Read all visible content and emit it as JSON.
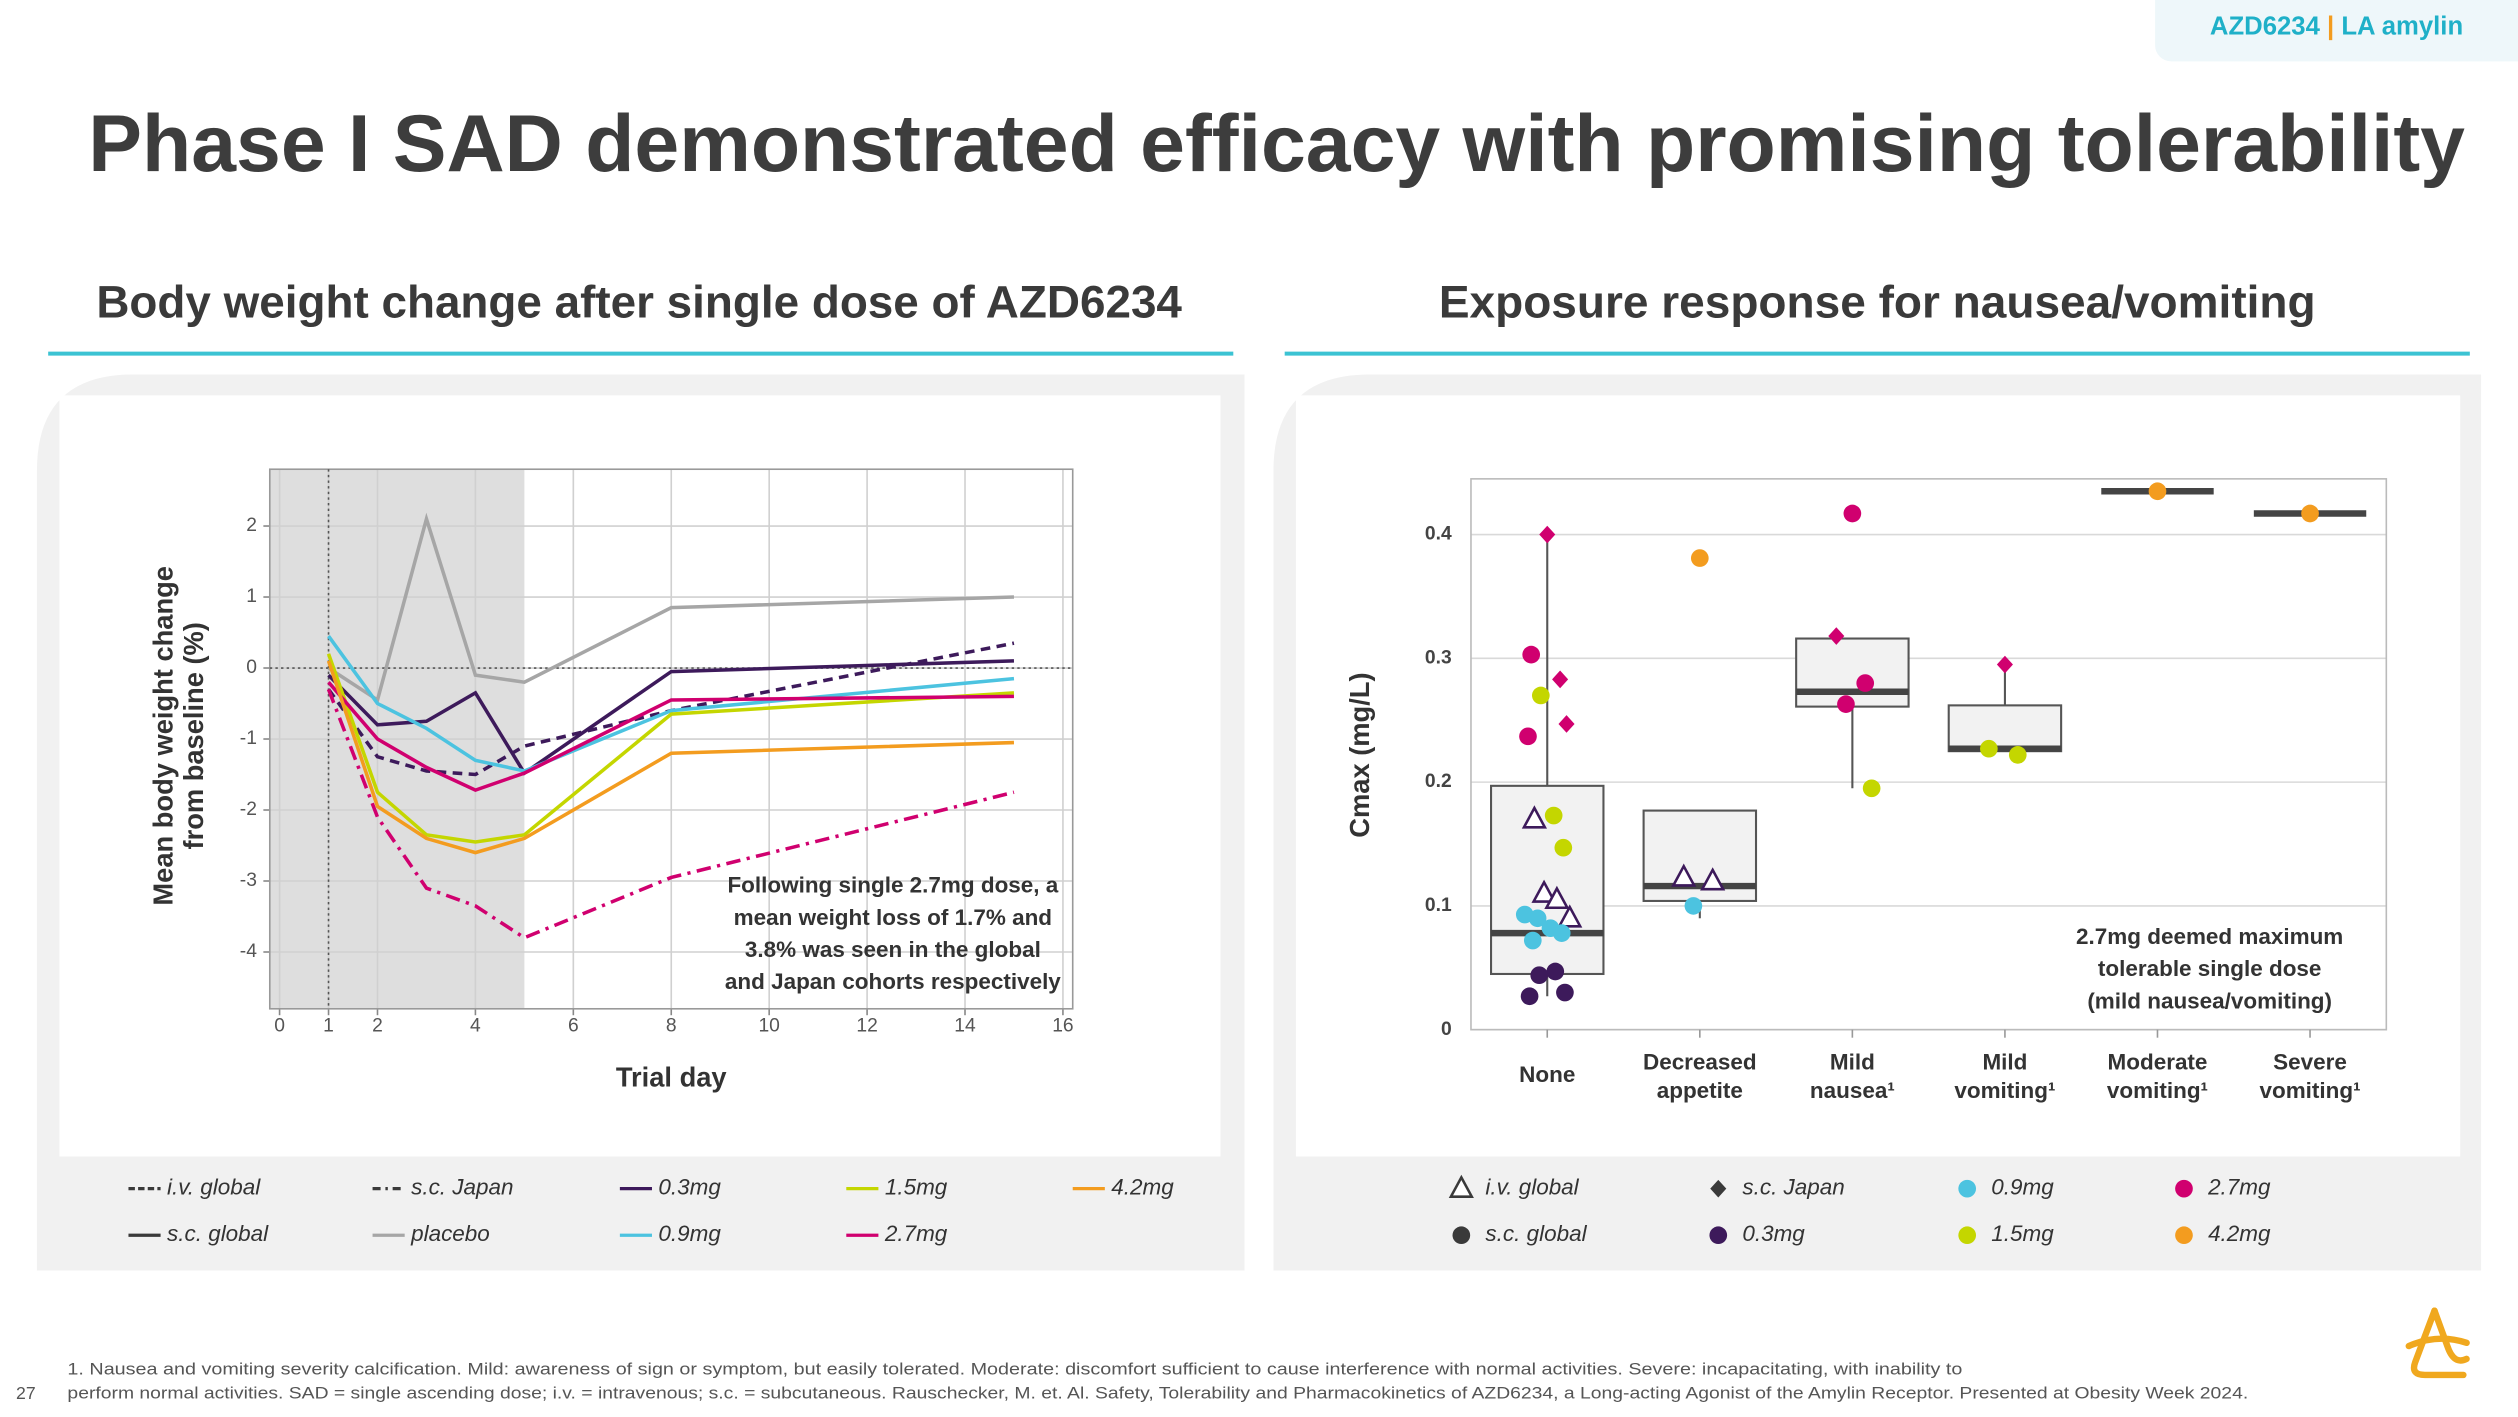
{
  "slide": {
    "badge": {
      "product": "AZD6234",
      "separator": "|",
      "tag": "LA amylin"
    },
    "title": "Phase I SAD demonstrated efficacy with promising tolerability",
    "footnotes": [
      "1. Nausea and vomiting severity calcification. Mild: awareness of sign or symptom, but easily tolerated. Moderate: discomfort sufficient to cause interference with normal activities. Severe: incapacitating, with inability to",
      "perform normal activities. SAD = single ascending dose; i.v. = intravenous; s.c. = subcutaneous. Rauschecker, M. et. Al. Safety, Tolerability and Pharmacokinetics of AZD6234, a Long-acting Agonist of the Amylin Receptor. Presented at Obesity Week 2024."
    ],
    "page_number": "27"
  },
  "chart_data": [
    {
      "type": "line",
      "title": "Body weight change after single dose of AZD6234",
      "x_label": "Trial day",
      "y_label": [
        "Mean body weight change",
        "from baseline (%)"
      ],
      "x": [
        1,
        2,
        3,
        4,
        5,
        8,
        15
      ],
      "xlim": [
        -0.2,
        16.2
      ],
      "xticks": [
        0,
        1,
        2,
        4,
        6,
        8,
        10,
        12,
        14,
        16
      ],
      "ylim": [
        -4.8,
        2.8
      ],
      "yticks": [
        -4,
        -3,
        -2,
        -1,
        0,
        1,
        2
      ],
      "grid": true,
      "shaded_until_x": 5,
      "ref_x": 1,
      "ref_y": 0,
      "series": [
        {
          "name": "placebo",
          "route": "s.c. global",
          "values": [
            0,
            -0.45,
            2.1,
            -0.1,
            -0.2,
            0.85,
            1.0
          ]
        },
        {
          "name": "0.3mg",
          "route": "s.c. global",
          "values": [
            -0.1,
            -0.8,
            -0.75,
            -0.35,
            -1.48,
            -0.05,
            0.1
          ]
        },
        {
          "name": "0.3mg",
          "route": "i.v. global",
          "values": [
            -0.3,
            -1.25,
            -1.45,
            -1.5,
            -1.1,
            -0.6,
            0.35
          ]
        },
        {
          "name": "0.9mg",
          "route": "s.c. global",
          "values": [
            0.45,
            -0.5,
            -0.85,
            -1.3,
            -1.45,
            -0.6,
            -0.15
          ]
        },
        {
          "name": "1.5mg",
          "route": "s.c. global",
          "values": [
            0.2,
            -1.75,
            -2.35,
            -2.45,
            -2.35,
            -0.65,
            -0.35
          ]
        },
        {
          "name": "2.7mg",
          "route": "s.c. global",
          "values": [
            -0.2,
            -1.0,
            -1.4,
            -1.72,
            -1.48,
            -0.45,
            -0.4
          ]
        },
        {
          "name": "2.7mg",
          "route": "s.c. Japan",
          "values": [
            -0.3,
            -2.1,
            -3.1,
            -3.35,
            -3.8,
            -2.95,
            -1.75
          ]
        },
        {
          "name": "4.2mg",
          "route": "s.c. global",
          "values": [
            0.1,
            -1.95,
            -2.4,
            -2.6,
            -2.4,
            -1.2,
            -1.05
          ]
        }
      ],
      "legend": [
        {
          "label": "i.v. global",
          "color": "#3a3a3a",
          "dash": "dashed"
        },
        {
          "label": "s.c. Japan",
          "color": "#3a3a3a",
          "dash": "dashdot"
        },
        {
          "label": "0.3mg",
          "color": "#3d1a5b"
        },
        {
          "label": "1.5mg",
          "color": "#c4d600"
        },
        {
          "label": "4.2mg",
          "color": "#f39c1f"
        },
        {
          "label": "s.c. global",
          "color": "#3a3a3a",
          "dash": "solid"
        },
        {
          "label": "placebo",
          "color": "#a6a6a6"
        },
        {
          "label": "0.9mg",
          "color": "#4cc3e0"
        },
        {
          "label": "2.7mg",
          "color": "#d0006f"
        }
      ],
      "annotation": [
        "Following single 2.7mg dose, a",
        "mean weight loss of 1.7% and",
        "3.8% was seen in the global",
        "and Japan cohorts respectively"
      ]
    },
    {
      "type": "box",
      "title": "Exposure response for nausea/vomiting",
      "y_label": "Cmax (mg/L)",
      "categories": [
        [
          "None"
        ],
        [
          "Decreased",
          "appetite"
        ],
        [
          "Mild",
          "nausea¹"
        ],
        [
          "Mild",
          "vomiting¹"
        ],
        [
          "Moderate",
          "vomiting¹"
        ],
        [
          "Severe",
          "vomiting¹"
        ]
      ],
      "ylim": [
        0,
        0.445
      ],
      "yticks": [
        0,
        0.1,
        0.2,
        0.3,
        0.4
      ],
      "grid": true,
      "boxes": [
        {
          "min": 0.027,
          "q1": 0.045,
          "median": 0.078,
          "q3": 0.197,
          "max": 0.4
        },
        {
          "min": 0.09,
          "q1": 0.104,
          "median": 0.116,
          "q3": 0.177,
          "max": 0.177
        },
        {
          "min": 0.195,
          "q1": 0.261,
          "median": 0.273,
          "q3": 0.316,
          "max": 0.316
        },
        {
          "min": 0.225,
          "q1": 0.225,
          "median": 0.227,
          "q3": 0.262,
          "max": 0.293
        },
        {
          "min": 0.435,
          "q1": 0.435,
          "median": 0.435,
          "q3": 0.435,
          "max": 0.435
        },
        {
          "min": 0.417,
          "q1": 0.417,
          "median": 0.417,
          "q3": 0.417,
          "max": 0.417
        }
      ],
      "points": [
        [
          {
            "y": 0.4,
            "dose": "2.7mg",
            "route": "s.c. Japan"
          },
          {
            "y": 0.303,
            "dose": "2.7mg",
            "route": "s.c. global"
          },
          {
            "y": 0.283,
            "dose": "2.7mg",
            "route": "s.c. Japan"
          },
          {
            "y": 0.27,
            "dose": "1.5mg",
            "route": "s.c. global"
          },
          {
            "y": 0.247,
            "dose": "2.7mg",
            "route": "s.c. Japan"
          },
          {
            "y": 0.237,
            "dose": "2.7mg",
            "route": "s.c. global"
          },
          {
            "y": 0.173,
            "dose": "1.5mg",
            "route": "s.c. global"
          },
          {
            "y": 0.17,
            "dose": "0.3mg",
            "route": "i.v. global"
          },
          {
            "y": 0.147,
            "dose": "1.5mg",
            "route": "s.c. global"
          },
          {
            "y": 0.11,
            "dose": "0.3mg",
            "route": "i.v. global"
          },
          {
            "y": 0.105,
            "dose": "0.3mg",
            "route": "i.v. global"
          },
          {
            "y": 0.093,
            "dose": "0.9mg",
            "route": "s.c. global"
          },
          {
            "y": 0.09,
            "dose": "0.3mg",
            "route": "i.v. global"
          },
          {
            "y": 0.09,
            "dose": "0.9mg",
            "route": "s.c. global"
          },
          {
            "y": 0.082,
            "dose": "0.9mg",
            "route": "s.c. global"
          },
          {
            "y": 0.078,
            "dose": "0.9mg",
            "route": "s.c. global"
          },
          {
            "y": 0.072,
            "dose": "0.9mg",
            "route": "s.c. global"
          },
          {
            "y": 0.047,
            "dose": "0.3mg",
            "route": "s.c. global"
          },
          {
            "y": 0.044,
            "dose": "0.3mg",
            "route": "s.c. global"
          },
          {
            "y": 0.03,
            "dose": "0.3mg",
            "route": "s.c. global"
          },
          {
            "y": 0.027,
            "dose": "0.3mg",
            "route": "s.c. global"
          }
        ],
        [
          {
            "y": 0.381,
            "dose": "4.2mg",
            "route": "s.c. global"
          },
          {
            "y": 0.123,
            "dose": "0.3mg",
            "route": "i.v. global"
          },
          {
            "y": 0.12,
            "dose": "0.3mg",
            "route": "i.v. global"
          },
          {
            "y": 0.1,
            "dose": "0.9mg",
            "route": "s.c. global"
          }
        ],
        [
          {
            "y": 0.417,
            "dose": "2.7mg",
            "route": "s.c. global"
          },
          {
            "y": 0.318,
            "dose": "2.7mg",
            "route": "s.c. Japan"
          },
          {
            "y": 0.28,
            "dose": "2.7mg",
            "route": "s.c. global"
          },
          {
            "y": 0.263,
            "dose": "2.7mg",
            "route": "s.c. global"
          },
          {
            "y": 0.195,
            "dose": "1.5mg",
            "route": "s.c. global"
          }
        ],
        [
          {
            "y": 0.295,
            "dose": "2.7mg",
            "route": "s.c. Japan"
          },
          {
            "y": 0.227,
            "dose": "1.5mg",
            "route": "s.c. global"
          },
          {
            "y": 0.222,
            "dose": "1.5mg",
            "route": "s.c. global"
          }
        ],
        [
          {
            "y": 0.435,
            "dose": "4.2mg",
            "route": "s.c. global"
          }
        ],
        [
          {
            "y": 0.417,
            "dose": "4.2mg",
            "route": "s.c. global"
          }
        ]
      ],
      "legend": [
        {
          "label": "i.v. global",
          "shape": "triangle",
          "color": "#3a3a3a"
        },
        {
          "label": "s.c. Japan",
          "shape": "diamond",
          "color": "#3a3a3a"
        },
        {
          "label": "0.9mg",
          "color": "#4cc3e0"
        },
        {
          "label": "2.7mg",
          "color": "#d0006f"
        },
        {
          "label": "s.c. global",
          "shape": "circle",
          "color": "#3a3a3a"
        },
        {
          "label": "0.3mg",
          "color": "#3d1a5b"
        },
        {
          "label": "1.5mg",
          "color": "#c4d600"
        },
        {
          "label": "4.2mg",
          "color": "#f39c1f"
        }
      ],
      "annotation": [
        "2.7mg deemed maximum",
        "tolerable single dose",
        "(mild nausea/vomiting)"
      ]
    }
  ]
}
